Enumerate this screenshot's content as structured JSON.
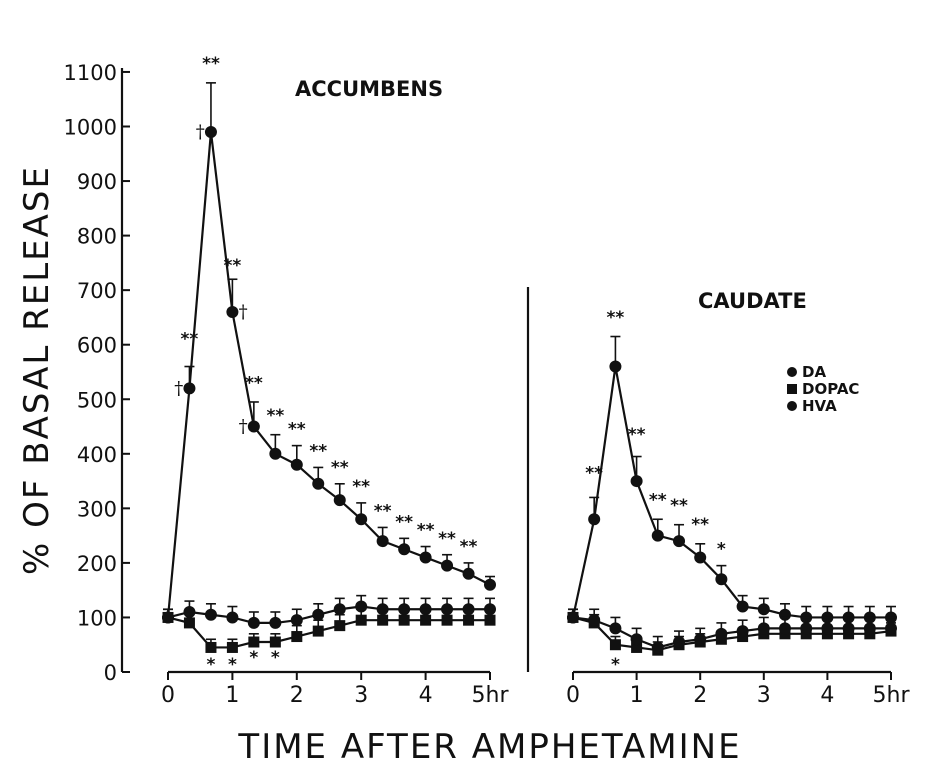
{
  "chart_data": [
    {
      "type": "line",
      "title": "ACCUMBENS",
      "xlabel": "TIME AFTER AMPHETAMINE",
      "ylabel": "% OF BASAL RELEASE",
      "xlim": [
        0,
        5
      ],
      "ylim": [
        0,
        1100
      ],
      "xticks": [
        "0",
        "1",
        "2",
        "3",
        "4",
        "5hr"
      ],
      "yticks": [
        "0",
        "100",
        "200",
        "300",
        "400",
        "500",
        "600",
        "700",
        "800",
        "900",
        "1000",
        "1100"
      ],
      "x": [
        0,
        0.333,
        0.667,
        1,
        1.333,
        1.667,
        2,
        2.333,
        2.667,
        3,
        3.333,
        3.667,
        4,
        4.333,
        4.667,
        5
      ],
      "series": [
        {
          "name": "DA",
          "marker": "circle",
          "values": [
            100,
            520,
            990,
            660,
            450,
            400,
            380,
            345,
            315,
            280,
            240,
            225,
            210,
            195,
            180,
            160
          ],
          "err": [
            15,
            40,
            90,
            60,
            45,
            35,
            35,
            30,
            30,
            30,
            25,
            20,
            20,
            20,
            20,
            15
          ]
        },
        {
          "name": "DOPAC",
          "marker": "square",
          "values": [
            100,
            90,
            45,
            45,
            55,
            55,
            65,
            75,
            85,
            95,
            95,
            95,
            95,
            95,
            95,
            95
          ],
          "err": [
            15,
            20,
            15,
            15,
            15,
            15,
            20,
            20,
            20,
            20,
            20,
            20,
            20,
            20,
            20,
            20
          ]
        },
        {
          "name": "HVA",
          "marker": "circle",
          "values": [
            100,
            110,
            105,
            100,
            90,
            90,
            95,
            105,
            115,
            120,
            115,
            115,
            115,
            115,
            115,
            115
          ],
          "err": [
            15,
            20,
            20,
            20,
            20,
            20,
            20,
            20,
            20,
            20,
            20,
            20,
            20,
            20,
            20,
            20
          ]
        }
      ],
      "annotations": [
        {
          "x": 0.333,
          "y": 600,
          "text": "**"
        },
        {
          "x": 0.667,
          "y": 1105,
          "text": "**"
        },
        {
          "x": 1,
          "y": 735,
          "text": "**"
        },
        {
          "x": 1.333,
          "y": 520,
          "text": "**"
        },
        {
          "x": 1.667,
          "y": 460,
          "text": "**"
        },
        {
          "x": 2,
          "y": 435,
          "text": "**"
        },
        {
          "x": 2.333,
          "y": 395,
          "text": "**"
        },
        {
          "x": 2.667,
          "y": 365,
          "text": "**"
        },
        {
          "x": 3,
          "y": 330,
          "text": "**"
        },
        {
          "x": 3.333,
          "y": 285,
          "text": "**"
        },
        {
          "x": 3.667,
          "y": 265,
          "text": "**"
        },
        {
          "x": 4,
          "y": 250,
          "text": "**"
        },
        {
          "x": 4.333,
          "y": 235,
          "text": "**"
        },
        {
          "x": 4.667,
          "y": 220,
          "text": "**"
        },
        {
          "x": 0.167,
          "y": 510,
          "text": "†"
        },
        {
          "x": 0.5,
          "y": 980,
          "text": "†"
        },
        {
          "x": 1.167,
          "y": 650,
          "text": "†"
        },
        {
          "x": 1.167,
          "y": 440,
          "text": "†"
        },
        {
          "x": 0.667,
          "y": 5,
          "text": "*"
        },
        {
          "x": 1,
          "y": 5,
          "text": "*"
        },
        {
          "x": 1.333,
          "y": 10,
          "text": "*"
        },
        {
          "x": 1.667,
          "y": 10,
          "text": "*"
        }
      ]
    },
    {
      "type": "line",
      "title": "CAUDATE",
      "xlim": [
        0,
        5
      ],
      "ylim": [
        0,
        700
      ],
      "xticks": [
        "0",
        "1",
        "2",
        "3",
        "4",
        "5hr"
      ],
      "x": [
        0,
        0.333,
        0.667,
        1,
        1.333,
        1.667,
        2,
        2.333,
        2.667,
        3,
        3.333,
        3.667,
        4,
        4.333,
        4.667,
        5
      ],
      "series": [
        {
          "name": "DA",
          "marker": "circle",
          "values": [
            100,
            280,
            560,
            350,
            250,
            240,
            210,
            170,
            120,
            115,
            105,
            100,
            100,
            100,
            100,
            100
          ],
          "err": [
            15,
            40,
            55,
            45,
            30,
            30,
            25,
            25,
            20,
            20,
            20,
            20,
            20,
            20,
            20,
            20
          ]
        },
        {
          "name": "DOPAC",
          "marker": "square",
          "values": [
            100,
            90,
            50,
            45,
            40,
            50,
            55,
            60,
            65,
            70,
            70,
            70,
            70,
            70,
            70,
            75
          ],
          "err": [
            15,
            15,
            15,
            15,
            15,
            15,
            15,
            15,
            15,
            15,
            15,
            15,
            15,
            15,
            15,
            15
          ]
        },
        {
          "name": "HVA",
          "marker": "circle",
          "values": [
            100,
            95,
            80,
            60,
            45,
            55,
            60,
            70,
            75,
            80,
            80,
            80,
            80,
            80,
            80,
            80
          ],
          "err": [
            15,
            20,
            20,
            20,
            20,
            20,
            20,
            20,
            20,
            20,
            20,
            20,
            20,
            20,
            20,
            20
          ]
        }
      ],
      "annotations": [
        {
          "x": 0.333,
          "y": 355,
          "text": "**"
        },
        {
          "x": 0.667,
          "y": 640,
          "text": "**"
        },
        {
          "x": 1,
          "y": 425,
          "text": "**"
        },
        {
          "x": 1.333,
          "y": 305,
          "text": "**"
        },
        {
          "x": 1.667,
          "y": 295,
          "text": "**"
        },
        {
          "x": 2,
          "y": 260,
          "text": "**"
        },
        {
          "x": 2.333,
          "y": 215,
          "text": "*"
        },
        {
          "x": 0.667,
          "y": 5,
          "text": "*"
        }
      ],
      "legend": {
        "placement": "top-right",
        "entries": [
          "DA",
          "DOPAC",
          "HVA"
        ]
      }
    }
  ]
}
